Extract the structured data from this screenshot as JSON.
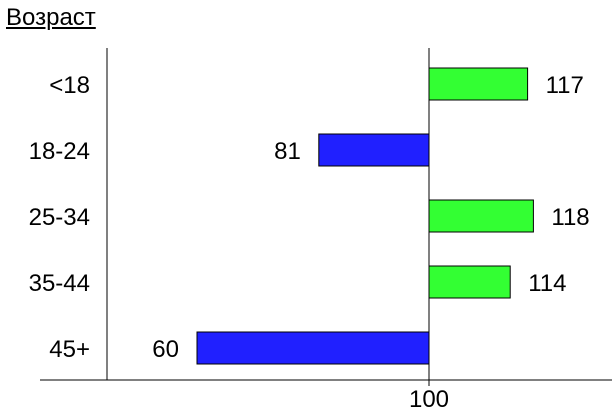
{
  "chart_data": {
    "type": "bar",
    "orientation": "horizontal",
    "title": "Возраст",
    "categories": [
      "<18",
      "18-24",
      "25-34",
      "35-44",
      "45+"
    ],
    "values": [
      117,
      81,
      118,
      114,
      60
    ],
    "baseline": 100,
    "baseline_label": "100",
    "xlim": [
      33,
      120
    ],
    "colors": {
      "above": "#33ff33",
      "below": "#2020ff",
      "stroke": "#000000"
    },
    "grid": false,
    "legend": "none"
  }
}
